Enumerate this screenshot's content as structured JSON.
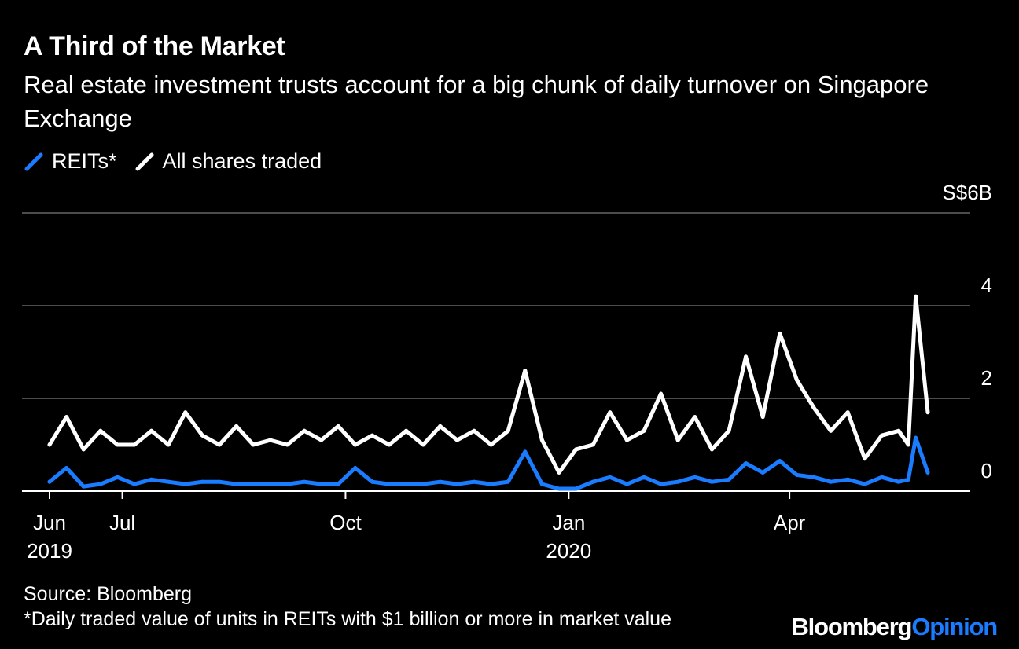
{
  "header": {
    "title": "A Third of the Market",
    "subtitle": "Real estate investment trusts account for a big chunk of daily turnover on Singapore Exchange"
  },
  "legend": [
    {
      "label": "REITs*",
      "color": "#1a7cff"
    },
    {
      "label": "All shares traded",
      "color": "#ffffff"
    }
  ],
  "footer": {
    "source": "Source: Bloomberg",
    "note": "*Daily traded value of units in REITs with $1 billion or more in market value"
  },
  "brand": {
    "primary": "Bloomberg",
    "secondary": "Opinion",
    "accent_color": "#1a7cff"
  },
  "chart_data": {
    "type": "line",
    "title": "A Third of the Market",
    "subtitle": "Real estate investment trusts account for a big chunk of daily turnover on Singapore Exchange",
    "xlabel": "",
    "ylabel": "S$ billions",
    "ylim": [
      0,
      6
    ],
    "y_ticks": [
      {
        "value": 0,
        "label": "0"
      },
      {
        "value": 2,
        "label": "2"
      },
      {
        "value": 4,
        "label": "4"
      },
      {
        "value": 6,
        "label": "S$6B"
      }
    ],
    "x_range": [
      "2019-06-01",
      "2020-05-28"
    ],
    "x_ticks": [
      {
        "date": "2019-06-01",
        "label": "Jun",
        "year": "2019"
      },
      {
        "date": "2019-07-01",
        "label": "Jul",
        "year": ""
      },
      {
        "date": "2019-10-01",
        "label": "Oct",
        "year": ""
      },
      {
        "date": "2020-01-01",
        "label": "Jan",
        "year": "2020"
      },
      {
        "date": "2020-04-01",
        "label": "Apr",
        "year": ""
      }
    ],
    "grid": true,
    "legend_position": "top-left",
    "series": [
      {
        "name": "All shares traded",
        "color": "#ffffff",
        "x": [
          "2019-06-01",
          "2019-06-08",
          "2019-06-15",
          "2019-06-22",
          "2019-06-29",
          "2019-07-06",
          "2019-07-13",
          "2019-07-20",
          "2019-07-27",
          "2019-08-03",
          "2019-08-10",
          "2019-08-17",
          "2019-08-24",
          "2019-08-31",
          "2019-09-07",
          "2019-09-14",
          "2019-09-21",
          "2019-09-28",
          "2019-10-05",
          "2019-10-12",
          "2019-10-19",
          "2019-10-26",
          "2019-11-02",
          "2019-11-09",
          "2019-11-16",
          "2019-11-23",
          "2019-11-30",
          "2019-12-07",
          "2019-12-14",
          "2019-12-21",
          "2019-12-28",
          "2020-01-04",
          "2020-01-11",
          "2020-01-18",
          "2020-01-25",
          "2020-02-01",
          "2020-02-08",
          "2020-02-15",
          "2020-02-22",
          "2020-02-29",
          "2020-03-07",
          "2020-03-14",
          "2020-03-21",
          "2020-03-28",
          "2020-04-04",
          "2020-04-11",
          "2020-04-18",
          "2020-04-25",
          "2020-05-02",
          "2020-05-09",
          "2020-05-16",
          "2020-05-20",
          "2020-05-23",
          "2020-05-28"
        ],
        "values": [
          1.0,
          1.6,
          0.9,
          1.3,
          1.0,
          1.0,
          1.3,
          1.0,
          1.7,
          1.2,
          1.0,
          1.4,
          1.0,
          1.1,
          1.0,
          1.3,
          1.1,
          1.4,
          1.0,
          1.2,
          1.0,
          1.3,
          1.0,
          1.4,
          1.1,
          1.3,
          1.0,
          1.3,
          2.6,
          1.1,
          0.4,
          0.9,
          1.0,
          1.7,
          1.1,
          1.3,
          2.1,
          1.1,
          1.6,
          0.9,
          1.3,
          2.9,
          1.6,
          3.4,
          2.4,
          1.8,
          1.3,
          1.7,
          0.7,
          1.2,
          1.3,
          1.0,
          4.2,
          1.7
        ]
      },
      {
        "name": "REITs*",
        "color": "#1a7cff",
        "x": [
          "2019-06-01",
          "2019-06-08",
          "2019-06-15",
          "2019-06-22",
          "2019-06-29",
          "2019-07-06",
          "2019-07-13",
          "2019-07-20",
          "2019-07-27",
          "2019-08-03",
          "2019-08-10",
          "2019-08-17",
          "2019-08-24",
          "2019-08-31",
          "2019-09-07",
          "2019-09-14",
          "2019-09-21",
          "2019-09-28",
          "2019-10-05",
          "2019-10-12",
          "2019-10-19",
          "2019-10-26",
          "2019-11-02",
          "2019-11-09",
          "2019-11-16",
          "2019-11-23",
          "2019-11-30",
          "2019-12-07",
          "2019-12-14",
          "2019-12-21",
          "2019-12-28",
          "2020-01-04",
          "2020-01-11",
          "2020-01-18",
          "2020-01-25",
          "2020-02-01",
          "2020-02-08",
          "2020-02-15",
          "2020-02-22",
          "2020-02-29",
          "2020-03-07",
          "2020-03-14",
          "2020-03-21",
          "2020-03-28",
          "2020-04-04",
          "2020-04-11",
          "2020-04-18",
          "2020-04-25",
          "2020-05-02",
          "2020-05-09",
          "2020-05-16",
          "2020-05-20",
          "2020-05-23",
          "2020-05-28"
        ],
        "values": [
          0.2,
          0.5,
          0.1,
          0.15,
          0.3,
          0.15,
          0.25,
          0.2,
          0.15,
          0.2,
          0.2,
          0.15,
          0.15,
          0.15,
          0.15,
          0.2,
          0.15,
          0.15,
          0.5,
          0.2,
          0.15,
          0.15,
          0.15,
          0.2,
          0.15,
          0.2,
          0.15,
          0.2,
          0.85,
          0.15,
          0.05,
          0.05,
          0.2,
          0.3,
          0.15,
          0.3,
          0.15,
          0.2,
          0.3,
          0.2,
          0.25,
          0.6,
          0.4,
          0.65,
          0.35,
          0.3,
          0.2,
          0.25,
          0.15,
          0.3,
          0.2,
          0.25,
          1.15,
          0.4
        ]
      }
    ]
  }
}
